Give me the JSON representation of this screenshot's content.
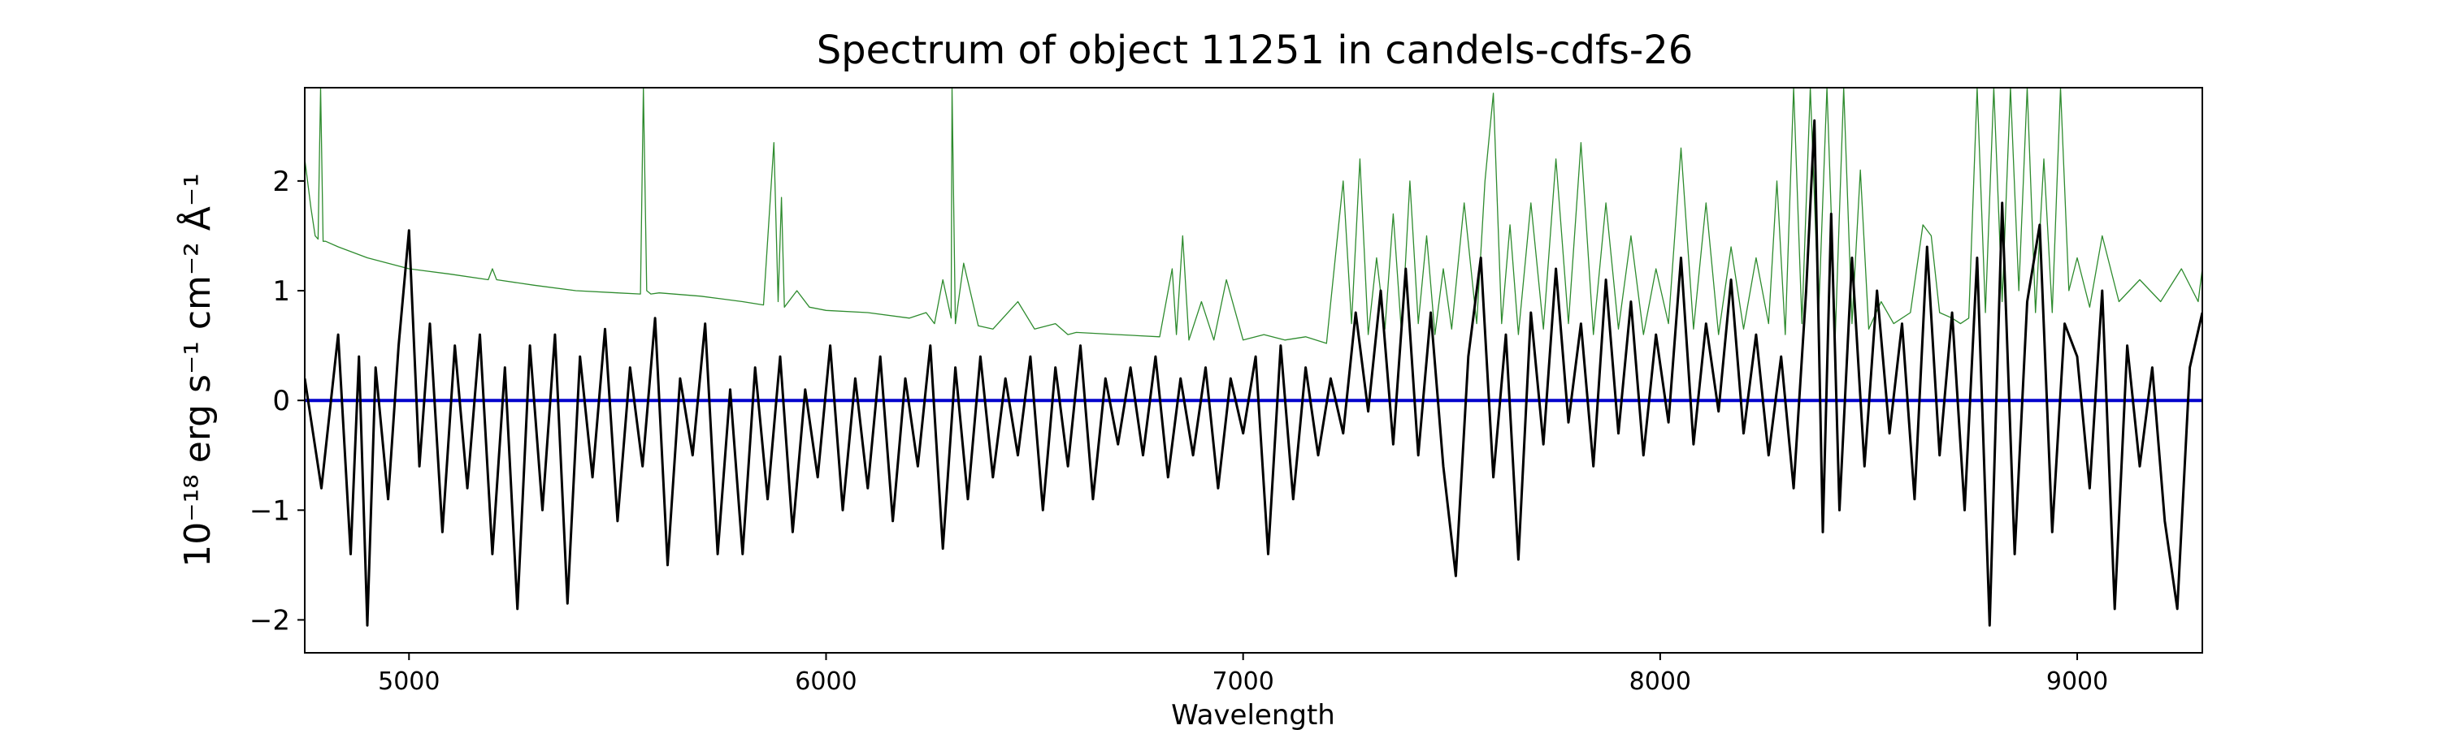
{
  "chart_data": {
    "type": "line",
    "title": "Spectrum of object 11251 in candels-cdfs-26",
    "xlabel": "Wavelength",
    "ylabel": "10⁻¹⁸ erg s⁻¹ cm⁻² Å⁻¹",
    "xlim": [
      4750,
      9300
    ],
    "ylim": [
      -2.3,
      2.85
    ],
    "grid": false,
    "x_ticks": [
      5000,
      6000,
      7000,
      8000,
      9000
    ],
    "y_ticks": [
      -2,
      -1,
      0,
      1,
      2
    ],
    "x_tick_labels": [
      "5000",
      "6000",
      "7000",
      "8000",
      "9000"
    ],
    "y_tick_labels": [
      "−2",
      "−1",
      "0",
      "1",
      "2"
    ],
    "series": [
      {
        "role": "flux",
        "color": "#000000",
        "x": [
          4750,
          4790,
          4830,
          4860,
          4880,
          4900,
          4920,
          4950,
          4975,
          5000,
          5025,
          5050,
          5080,
          5110,
          5140,
          5170,
          5200,
          5230,
          5260,
          5290,
          5320,
          5350,
          5380,
          5410,
          5440,
          5470,
          5500,
          5530,
          5560,
          5590,
          5620,
          5650,
          5680,
          5710,
          5740,
          5770,
          5800,
          5830,
          5860,
          5890,
          5920,
          5950,
          5980,
          6010,
          6040,
          6070,
          6100,
          6130,
          6160,
          6190,
          6220,
          6250,
          6280,
          6310,
          6340,
          6370,
          6400,
          6430,
          6460,
          6490,
          6520,
          6550,
          6580,
          6610,
          6640,
          6670,
          6700,
          6730,
          6760,
          6790,
          6820,
          6850,
          6880,
          6910,
          6940,
          6970,
          7000,
          7030,
          7060,
          7090,
          7120,
          7150,
          7180,
          7210,
          7240,
          7270,
          7300,
          7330,
          7360,
          7390,
          7420,
          7450,
          7480,
          7510,
          7540,
          7570,
          7600,
          7630,
          7660,
          7690,
          7720,
          7750,
          7780,
          7810,
          7840,
          7870,
          7900,
          7930,
          7960,
          7990,
          8020,
          8050,
          8080,
          8110,
          8140,
          8170,
          8200,
          8230,
          8260,
          8290,
          8320,
          8350,
          8370,
          8390,
          8410,
          8430,
          8460,
          8490,
          8520,
          8550,
          8580,
          8610,
          8640,
          8670,
          8700,
          8730,
          8760,
          8790,
          8820,
          8850,
          8880,
          8910,
          8940,
          8970,
          9000,
          9030,
          9060,
          9090,
          9120,
          9150,
          9180,
          9210,
          9240,
          9270,
          9300
        ],
        "y": [
          0.2,
          -0.8,
          0.6,
          -1.4,
          0.4,
          -2.05,
          0.3,
          -0.9,
          0.5,
          1.55,
          -0.6,
          0.7,
          -1.2,
          0.5,
          -0.8,
          0.6,
          -1.4,
          0.3,
          -1.9,
          0.5,
          -1.0,
          0.6,
          -1.85,
          0.4,
          -0.7,
          0.65,
          -1.1,
          0.3,
          -0.6,
          0.75,
          -1.5,
          0.2,
          -0.5,
          0.7,
          -1.4,
          0.1,
          -1.4,
          0.3,
          -0.9,
          0.4,
          -1.2,
          0.1,
          -0.7,
          0.5,
          -1.0,
          0.2,
          -0.8,
          0.4,
          -1.1,
          0.2,
          -0.6,
          0.5,
          -1.35,
          0.3,
          -0.9,
          0.4,
          -0.7,
          0.2,
          -0.5,
          0.4,
          -1.0,
          0.3,
          -0.6,
          0.5,
          -0.9,
          0.2,
          -0.4,
          0.3,
          -0.5,
          0.4,
          -0.7,
          0.2,
          -0.5,
          0.3,
          -0.8,
          0.2,
          -0.3,
          0.4,
          -1.4,
          0.5,
          -0.9,
          0.3,
          -0.5,
          0.2,
          -0.3,
          0.8,
          -0.1,
          1.0,
          -0.4,
          1.2,
          -0.5,
          0.8,
          -0.6,
          -1.6,
          0.4,
          1.3,
          -0.7,
          0.6,
          -1.45,
          0.8,
          -0.4,
          1.2,
          -0.2,
          0.7,
          -0.6,
          1.1,
          -0.3,
          0.9,
          -0.5,
          0.6,
          -0.2,
          1.3,
          -0.4,
          0.7,
          -0.1,
          1.1,
          -0.3,
          0.6,
          -0.5,
          0.4,
          -0.8,
          1.0,
          2.55,
          -1.2,
          1.7,
          -1.0,
          1.3,
          -0.6,
          1.0,
          -0.3,
          0.7,
          -0.9,
          1.4,
          -0.5,
          0.8,
          -1.0,
          1.3,
          -2.05,
          1.8,
          -1.4,
          0.9,
          1.6,
          -1.2,
          0.7,
          0.4,
          -0.8,
          1.0,
          -1.9,
          0.5,
          -0.6,
          0.3,
          -1.1,
          -1.9,
          0.3,
          0.8
        ]
      },
      {
        "role": "error",
        "color": "#2e8b2e",
        "x": [
          4750,
          4765,
          4775,
          4782,
          4788,
          4794,
          4800,
          4830,
          4900,
          5000,
          5100,
          5190,
          5200,
          5210,
          5300,
          5400,
          5500,
          5555,
          5562,
          5570,
          5580,
          5600,
          5700,
          5800,
          5850,
          5875,
          5885,
          5893,
          5900,
          5930,
          5960,
          6000,
          6100,
          6200,
          6240,
          6260,
          6280,
          6300,
          6302,
          6310,
          6330,
          6365,
          6400,
          6460,
          6500,
          6550,
          6580,
          6600,
          6700,
          6800,
          6830,
          6840,
          6855,
          6870,
          6900,
          6930,
          6960,
          7000,
          7050,
          7100,
          7150,
          7200,
          7240,
          7260,
          7280,
          7300,
          7320,
          7340,
          7360,
          7380,
          7400,
          7420,
          7440,
          7460,
          7480,
          7500,
          7530,
          7560,
          7580,
          7600,
          7620,
          7640,
          7660,
          7690,
          7720,
          7750,
          7780,
          7810,
          7840,
          7870,
          7900,
          7930,
          7960,
          7990,
          8020,
          8050,
          8080,
          8110,
          8140,
          8170,
          8200,
          8230,
          8260,
          8280,
          8300,
          8320,
          8340,
          8360,
          8380,
          8400,
          8420,
          8440,
          8460,
          8480,
          8500,
          8530,
          8560,
          8600,
          8630,
          8650,
          8670,
          8700,
          8720,
          8740,
          8760,
          8780,
          8800,
          8820,
          8840,
          8860,
          8880,
          8900,
          8920,
          8940,
          8960,
          8980,
          9000,
          9030,
          9060,
          9100,
          9150,
          9200,
          9250,
          9290,
          9300
        ],
        "y": [
          2.2,
          1.75,
          1.5,
          1.47,
          2.85,
          1.45,
          1.45,
          1.4,
          1.3,
          1.2,
          1.15,
          1.1,
          1.2,
          1.1,
          1.05,
          1.0,
          0.98,
          0.97,
          2.85,
          1.0,
          0.97,
          0.98,
          0.95,
          0.9,
          0.87,
          2.35,
          0.9,
          1.85,
          0.85,
          1.0,
          0.85,
          0.82,
          0.8,
          0.75,
          0.8,
          0.7,
          1.1,
          0.75,
          2.85,
          0.7,
          1.25,
          0.68,
          0.65,
          0.9,
          0.65,
          0.7,
          0.6,
          0.62,
          0.6,
          0.58,
          1.2,
          0.6,
          1.5,
          0.55,
          0.9,
          0.55,
          1.1,
          0.55,
          0.6,
          0.55,
          0.58,
          0.52,
          2.0,
          0.7,
          2.2,
          0.6,
          1.3,
          0.65,
          1.7,
          0.6,
          2.0,
          0.7,
          1.5,
          0.6,
          1.2,
          0.65,
          1.8,
          0.7,
          2.0,
          2.8,
          0.7,
          1.6,
          0.6,
          1.8,
          0.65,
          2.2,
          0.7,
          2.35,
          0.6,
          1.8,
          0.65,
          1.5,
          0.6,
          1.2,
          0.7,
          2.3,
          0.65,
          1.8,
          0.6,
          1.4,
          0.65,
          1.3,
          0.7,
          2.0,
          0.6,
          2.85,
          0.7,
          2.85,
          0.8,
          2.85,
          0.6,
          2.85,
          0.7,
          2.1,
          0.65,
          0.9,
          0.7,
          0.8,
          1.6,
          1.5,
          0.8,
          0.75,
          0.7,
          0.75,
          2.85,
          0.8,
          2.85,
          0.9,
          2.85,
          1.0,
          2.85,
          0.8,
          2.2,
          0.8,
          2.85,
          1.0,
          1.3,
          0.85,
          1.5,
          0.9,
          1.1,
          0.9,
          1.2,
          0.9,
          1.2
        ]
      },
      {
        "role": "zero",
        "color": "#0000cc",
        "x": [
          4750,
          9300
        ],
        "y": [
          0,
          0
        ]
      }
    ]
  }
}
